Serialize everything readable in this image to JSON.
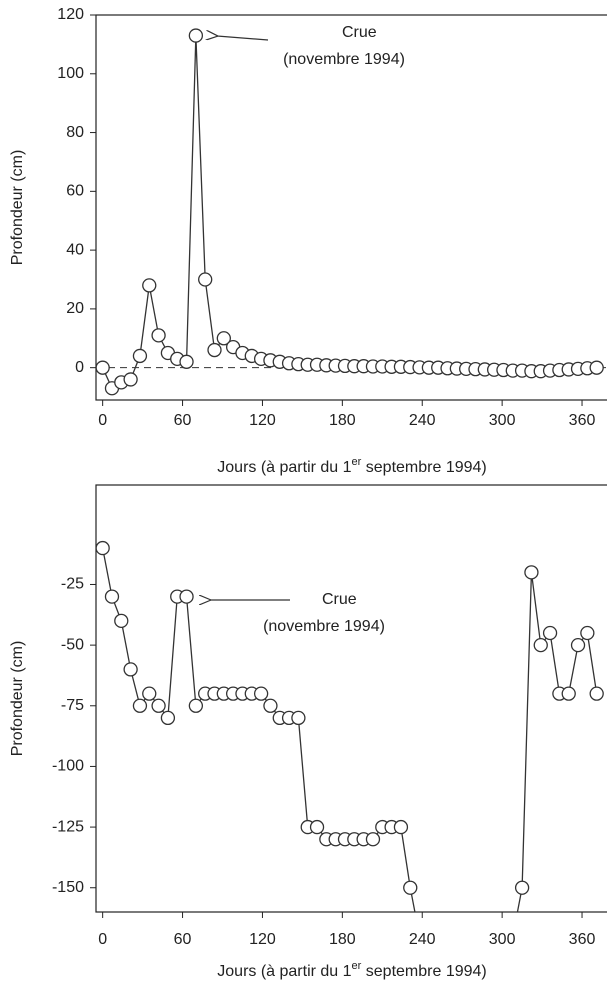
{
  "chart_data": [
    {
      "type": "line",
      "ylabel": "Profondeur (cm)",
      "xlabel": [
        "Jours (à partir du 1",
        "er",
        " septembre 1994)"
      ],
      "annotation": [
        "Crue",
        "(novembre 1994)"
      ],
      "x": [
        0,
        7,
        14,
        21,
        28,
        35,
        42,
        49,
        56,
        63,
        70,
        77,
        84,
        91,
        98,
        105,
        112,
        119,
        126,
        133,
        140,
        147,
        154,
        161,
        168,
        175,
        182,
        189,
        196,
        203,
        210,
        217,
        224,
        231,
        238,
        245,
        252,
        259,
        266,
        273,
        280,
        287,
        294,
        301,
        308,
        315,
        322,
        329,
        336,
        343,
        350,
        357,
        364,
        371
      ],
      "values": [
        0,
        -7,
        -5,
        -4,
        4,
        28,
        11,
        5,
        3,
        2,
        113,
        30,
        6,
        10,
        7,
        5,
        4,
        3,
        2.5,
        2,
        1.5,
        1.2,
        1,
        1,
        0.8,
        0.7,
        0.6,
        0.5,
        0.5,
        0.4,
        0.4,
        0.3,
        0.3,
        0.2,
        0.1,
        0,
        0,
        -0.2,
        -0.3,
        -0.4,
        -0.5,
        -0.6,
        -0.7,
        -0.8,
        -1,
        -1,
        -1.2,
        -1.2,
        -1,
        -0.8,
        -0.6,
        -0.4,
        -0.2,
        0
      ],
      "color": "#333333",
      "xlim": [
        -5,
        378
      ],
      "ylim": [
        -11,
        120
      ],
      "xticks": [
        0,
        60,
        120,
        180,
        240,
        300,
        360
      ],
      "yticks": [
        0,
        20,
        40,
        60,
        80,
        100,
        120
      ],
      "zero_line": true
    },
    {
      "type": "line",
      "ylabel": "Profondeur (cm)",
      "xlabel": [
        "Jours (à partir du 1",
        "er",
        " septembre 1994)"
      ],
      "annotation": [
        "Crue",
        "(novembre 1994)"
      ],
      "x": [
        0,
        7,
        14,
        21,
        28,
        35,
        42,
        49,
        56,
        63,
        70,
        77,
        84,
        91,
        98,
        105,
        112,
        119,
        126,
        133,
        140,
        147,
        154,
        161,
        168,
        175,
        182,
        189,
        196,
        203,
        210,
        217,
        224,
        231,
        238,
        308,
        315,
        322,
        329,
        336,
        343,
        350,
        357,
        364,
        371
      ],
      "values": [
        -10,
        -30,
        -40,
        -60,
        -75,
        -70,
        -75,
        -80,
        -30,
        -30,
        -75,
        -70,
        -70,
        -70,
        -70,
        -70,
        -70,
        -70,
        -75,
        -80,
        -80,
        -80,
        -125,
        -125,
        -130,
        -130,
        -130,
        -130,
        -130,
        -130,
        -125,
        -125,
        -125,
        -150,
        -170,
        -170,
        -150,
        -20,
        -50,
        -45,
        -70,
        -70,
        -50,
        -45,
        -70
      ],
      "color": "#333333",
      "xlim": [
        -5,
        378
      ],
      "ylim": [
        -160,
        16
      ],
      "xticks": [
        0,
        60,
        120,
        180,
        240,
        300,
        360
      ],
      "yticks": [
        -25,
        -50,
        -75,
        -100,
        -125,
        -150
      ],
      "zero_line": false
    }
  ]
}
